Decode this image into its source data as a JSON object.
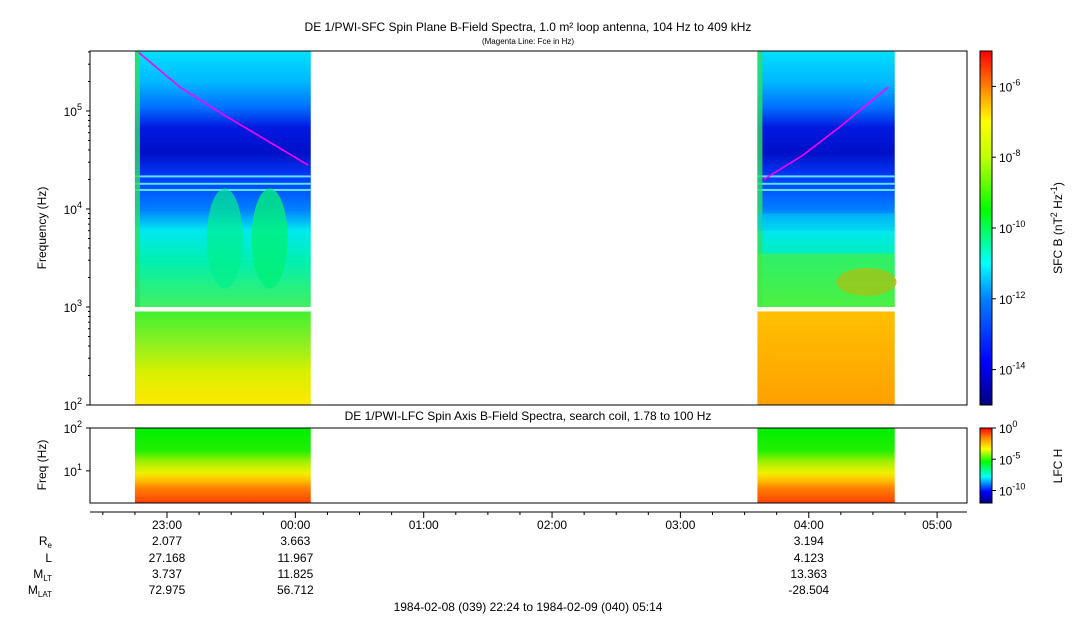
{
  "chart_data": [
    {
      "type": "heatmap",
      "title": "DE 1/PWI-SFC  Spin Plane B-Field Spectra, 1.0 m² loop antenna, 104 Hz to 409 kHz",
      "subtitle": "(Magenta Line: Fce in Hz)",
      "ylabel": "Frequency (Hz)",
      "yscale": "log",
      "ylim": [
        100,
        409000
      ],
      "yticks": [
        {
          "value": 100,
          "base": "10",
          "exp": "2"
        },
        {
          "value": 1000,
          "base": "10",
          "exp": "3"
        },
        {
          "value": 10000,
          "base": "10",
          "exp": "4"
        },
        {
          "value": 100000,
          "base": "10",
          "exp": "5"
        }
      ],
      "colorbar": {
        "label": "SFC B (nT",
        "label_exp": "2",
        "label_mid": " Hz",
        "label_exp2": "-1",
        "label_end": ")",
        "scale": "log",
        "range": [
          1e-15,
          1e-05
        ],
        "ticks": [
          {
            "value": 1e-06,
            "base": "10",
            "exp": "-6"
          },
          {
            "value": 1e-08,
            "base": "10",
            "exp": "-8"
          },
          {
            "value": 1e-10,
            "base": "10",
            "exp": "-10"
          },
          {
            "value": 1e-12,
            "base": "10",
            "exp": "-12"
          },
          {
            "value": 1e-14,
            "base": "10",
            "exp": "-14"
          }
        ]
      },
      "data_intervals": [
        {
          "start_hour": 22.75,
          "end_hour": 24.12
        },
        {
          "start_hour": 27.6,
          "end_hour": 28.67
        }
      ],
      "series": [
        {
          "name": "Fce",
          "color": "#ff00ff",
          "segments": [
            {
              "x": [
                22.78,
                23.1,
                23.45,
                23.8,
                24.1
              ],
              "y": [
                395000,
                175000,
                90000,
                48000,
                28000
              ]
            },
            {
              "x": [
                27.65,
                27.95,
                28.25,
                28.62
              ],
              "y": [
                20000,
                35000,
                70000,
                175000
              ]
            }
          ]
        }
      ]
    },
    {
      "type": "heatmap",
      "title": "DE 1/PWI-LFC  Spin Axis B-Field Spectra, search coil, 1.78 to 100 Hz",
      "ylabel": "Freq (Hz)",
      "yscale": "log",
      "ylim": [
        1.78,
        100
      ],
      "yticks": [
        {
          "value": 10,
          "base": "10",
          "exp": "1"
        },
        {
          "value": 100,
          "base": "10",
          "exp": "2"
        }
      ],
      "colorbar": {
        "label": "LFC H",
        "scale": "log",
        "range": [
          1e-12,
          1
        ],
        "ticks": [
          {
            "value": 1,
            "base": "10",
            "exp": "0"
          },
          {
            "value": 1e-05,
            "base": "10",
            "exp": "-5"
          },
          {
            "value": 1e-10,
            "base": "10",
            "exp": "-10"
          }
        ]
      },
      "data_intervals": [
        {
          "start_hour": 22.75,
          "end_hour": 24.12
        },
        {
          "start_hour": 27.6,
          "end_hour": 28.67
        }
      ]
    }
  ],
  "time_axis": {
    "range_hours": [
      22.4,
      29.233
    ],
    "ticks": [
      {
        "hour": 23,
        "label": "23:00"
      },
      {
        "hour": 24,
        "label": "00:00"
      },
      {
        "hour": 25,
        "label": "01:00"
      },
      {
        "hour": 26,
        "label": "02:00"
      },
      {
        "hour": 27,
        "label": "03:00"
      },
      {
        "hour": 28,
        "label": "04:00"
      },
      {
        "hour": 29,
        "label": "05:00"
      }
    ],
    "range_label": "1984-02-08 (039) 22:24 to 1984-02-09 (040) 05:14"
  },
  "ephemeris": {
    "rows": [
      {
        "label": "R",
        "sub": "e",
        "values": [
          "2.077",
          "3.663",
          "3.194"
        ]
      },
      {
        "label": "L",
        "sub": "",
        "values": [
          "27.168",
          "11.967",
          "4.123"
        ]
      },
      {
        "label": "M",
        "sub": "LT",
        "values": [
          "3.737",
          "11.825",
          "13.363"
        ]
      },
      {
        "label": "M",
        "sub": "LAT",
        "values": [
          "72.975",
          "56.712",
          "-28.504"
        ]
      }
    ],
    "column_hours": [
      23,
      24,
      28
    ]
  }
}
